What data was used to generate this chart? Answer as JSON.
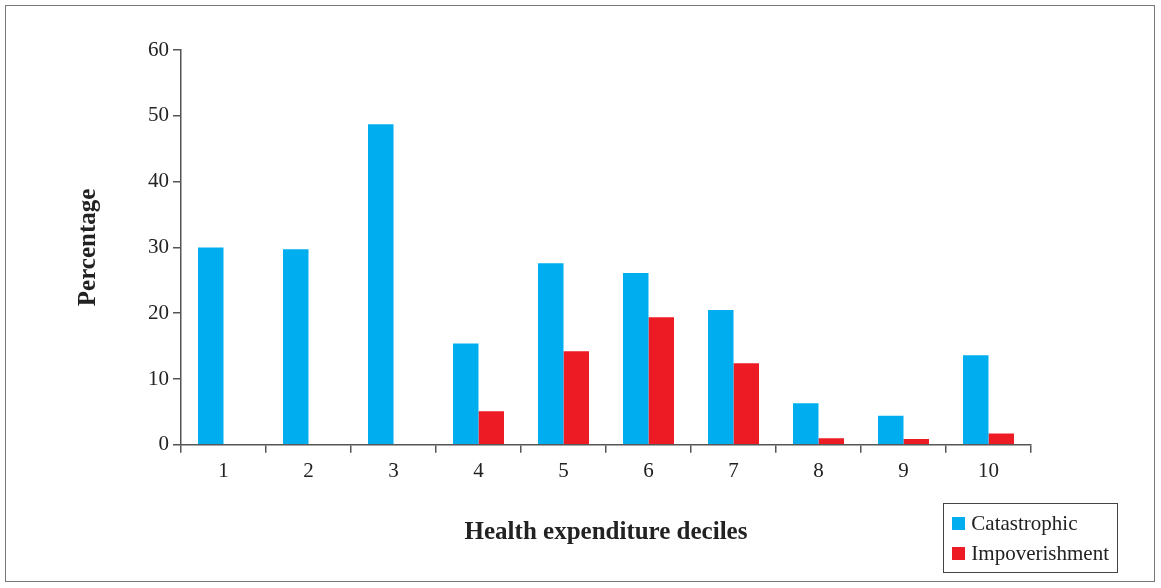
{
  "chart_data": {
    "type": "bar",
    "xlabel": "Health expenditure deciles",
    "ylabel": "Percentage",
    "categories": [
      "1",
      "2",
      "3",
      "4",
      "5",
      "6",
      "7",
      "8",
      "9",
      "10"
    ],
    "series": [
      {
        "name": "Catastrophic",
        "color": "#00aeef",
        "values": [
          30.0,
          29.7,
          48.7,
          15.4,
          27.6,
          26.1,
          20.5,
          6.3,
          4.4,
          13.6
        ]
      },
      {
        "name": "Impoverishment",
        "color": "#ed1c24",
        "values": [
          0,
          0,
          0,
          5.1,
          14.2,
          19.4,
          12.4,
          1.0,
          0.9,
          1.7
        ]
      }
    ],
    "ylim": [
      0,
      60
    ],
    "yticks": [
      0,
      10,
      20,
      30,
      40,
      50,
      60
    ],
    "grid": false,
    "legend": "bottom right"
  }
}
